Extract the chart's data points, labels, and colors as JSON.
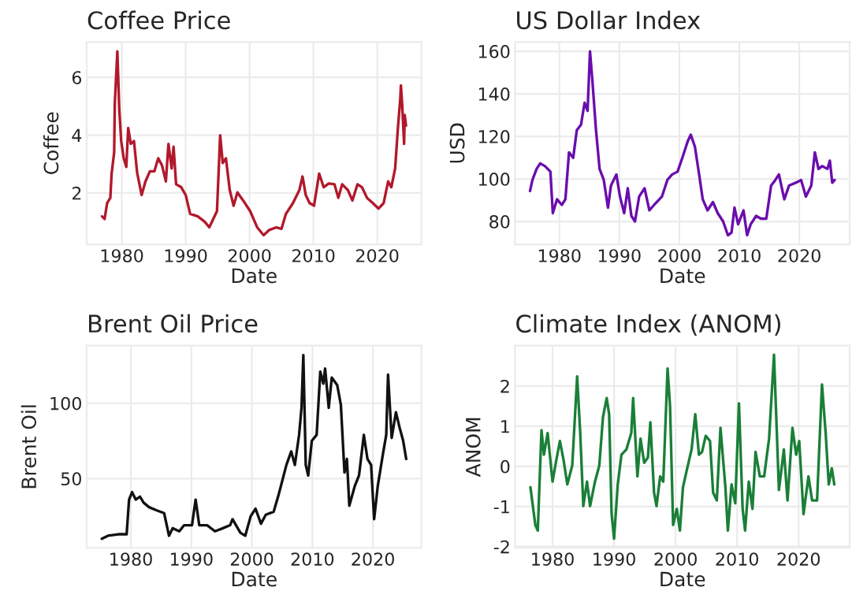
{
  "chart_data": [
    {
      "type": "line",
      "title": "Coffee Price",
      "xlabel": "Date",
      "ylabel": "Coffee",
      "xlim": [
        1974.5,
        2026.9
      ],
      "xticks": [
        1980,
        1990,
        2000,
        2010,
        2020
      ],
      "ylim": [
        0.22,
        7.22
      ],
      "yticks": [
        2,
        4,
        6
      ],
      "grid": true,
      "series": [
        {
          "color": "#b2182b",
          "x": [
            1976.9,
            1977.3,
            1977.7,
            1978.2,
            1978.4,
            1978.8,
            1978.9,
            1979.3,
            1979.6,
            1979.9,
            1980.3,
            1980.7,
            1981.0,
            1981.4,
            1981.9,
            1982.4,
            1983.1,
            1983.7,
            1984.4,
            1985.1,
            1985.7,
            1986.3,
            1986.9,
            1987.3,
            1987.8,
            1988.1,
            1988.5,
            1989.3,
            1990.0,
            1990.7,
            1991.9,
            1993.0,
            1993.7,
            1994.9,
            1995.4,
            1995.8,
            1996.3,
            1996.9,
            1997.5,
            1998.1,
            1999.0,
            2000.1,
            2001.2,
            2002.2,
            2003.1,
            2004.2,
            2005.0,
            2005.7,
            2006.8,
            2007.8,
            2008.3,
            2008.8,
            2009.4,
            2010.1,
            2010.9,
            2011.6,
            2012.4,
            2013.3,
            2013.9,
            2014.5,
            2015.4,
            2016.1,
            2016.9,
            2017.6,
            2018.4,
            2019.3,
            2020.2,
            2021.0,
            2021.7,
            2022.2,
            2022.8,
            2023.2,
            2023.6,
            2023.7,
            2023.9,
            2024.2,
            2024.3,
            2024.5
          ],
          "values": [
            1.19,
            1.1,
            1.65,
            1.83,
            2.67,
            3.4,
            5.1,
            6.9,
            4.9,
            3.8,
            3.2,
            2.9,
            4.25,
            3.7,
            3.8,
            2.7,
            1.93,
            2.4,
            2.75,
            2.75,
            3.2,
            2.95,
            2.4,
            3.7,
            2.85,
            3.6,
            2.3,
            2.2,
            1.93,
            1.28,
            1.19,
            1.0,
            0.81,
            1.37,
            4.0,
            3.04,
            3.2,
            2.1,
            1.56,
            2.02,
            1.74,
            1.37,
            0.81,
            0.54,
            0.72,
            0.81,
            0.76,
            1.28,
            1.65,
            2.1,
            2.57,
            1.93,
            1.65,
            1.56,
            2.67,
            2.2,
            2.33,
            2.3,
            1.83,
            2.3,
            2.1,
            1.74,
            2.3,
            2.2,
            1.83,
            1.65,
            1.46,
            1.65,
            2.4,
            2.2,
            2.85,
            4.15,
            5.26,
            5.72,
            5.07,
            3.7,
            4.7,
            4.33
          ]
        }
      ]
    },
    {
      "type": "line",
      "title": "US Dollar Index",
      "xlabel": "Date",
      "ylabel": "USD",
      "xlim": [
        1972.6,
        2028.4
      ],
      "xticks": [
        1980,
        1990,
        2000,
        2010,
        2020
      ],
      "ylim": [
        69.2,
        164.3
      ],
      "yticks": [
        80,
        100,
        120,
        140,
        160
      ],
      "grid": true,
      "series": [
        {
          "color": "#6a0dad",
          "x": [
            1975.1,
            1975.5,
            1976.2,
            1976.8,
            1977.6,
            1978.5,
            1978.9,
            1979.6,
            1980.4,
            1981.0,
            1981.6,
            1982.3,
            1982.9,
            1983.6,
            1984.2,
            1984.7,
            1985.1,
            1985.5,
            1986.1,
            1986.7,
            1987.4,
            1988.1,
            1988.6,
            1989.5,
            1990.1,
            1990.8,
            1991.4,
            1992.0,
            1992.6,
            1993.3,
            1994.2,
            1995.0,
            1995.8,
            1997.1,
            1998.0,
            1998.8,
            1999.7,
            2000.5,
            2001.4,
            2001.9,
            2002.6,
            2003.3,
            2003.9,
            2004.7,
            2005.6,
            2006.4,
            2007.3,
            2008.1,
            2008.7,
            2009.2,
            2009.8,
            2010.7,
            2011.3,
            2011.9,
            2012.8,
            2013.6,
            2014.5,
            2015.3,
            2016.0,
            2016.6,
            2017.5,
            2018.3,
            2019.4,
            2020.3,
            2021.1,
            2022.0,
            2022.6,
            2023.2,
            2023.8,
            2024.7,
            2025.1,
            2025.5,
            2025.9
          ],
          "values": [
            94.3,
            99.5,
            104.7,
            107.3,
            106,
            103.4,
            83.9,
            90.4,
            87.8,
            90.4,
            112.5,
            109.9,
            122.9,
            125.5,
            135.8,
            132,
            160,
            146.2,
            122.9,
            104.7,
            99.5,
            86.5,
            96.9,
            102.1,
            91.7,
            83.9,
            95.6,
            82.6,
            80,
            91.7,
            95.6,
            85.2,
            87.8,
            91.7,
            99.5,
            102.1,
            103.4,
            109.9,
            117.7,
            120.8,
            115.1,
            102.1,
            90.4,
            85.2,
            89.1,
            83.9,
            80,
            73.5,
            74.8,
            86.5,
            78.7,
            85.2,
            73.5,
            78.7,
            82.6,
            81.3,
            81.3,
            96.9,
            99.5,
            102.1,
            90.4,
            96.9,
            98.2,
            99.5,
            91.7,
            96.9,
            112.5,
            104.7,
            106,
            104.7,
            108.6,
            98.2,
            99.5
          ]
        }
      ]
    },
    {
      "type": "line",
      "title": "Brent Oil Price",
      "xlabel": "Date",
      "ylabel": "Brent Oil",
      "xlim": [
        1972.7,
        2028.0
      ],
      "xticks": [
        1980,
        1990,
        2000,
        2010,
        2020
      ],
      "ylim": [
        4,
        138.3
      ],
      "yticks": [
        50,
        100
      ],
      "grid": true,
      "series": [
        {
          "color": "#111111",
          "x": [
            1975.2,
            1976.2,
            1977.9,
            1979.3,
            1979.7,
            1980.2,
            1980.8,
            1981.5,
            1982.1,
            1983.0,
            1984.2,
            1985.5,
            1986.3,
            1986.9,
            1988.0,
            1988.8,
            1990.1,
            1990.7,
            1991.3,
            1992.6,
            1993.9,
            1995.2,
            1996.4,
            1996.8,
            1998.1,
            1998.9,
            1999.8,
            2000.6,
            2001.5,
            2002.3,
            2003.6,
            2004.4,
            2005.7,
            2006.5,
            2007.1,
            2007.8,
            2008.2,
            2008.5,
            2008.9,
            2009.3,
            2009.9,
            2010.7,
            2011.3,
            2011.8,
            2012.1,
            2012.7,
            2013.2,
            2014.1,
            2014.7,
            2015.3,
            2015.7,
            2016.1,
            2017.0,
            2017.7,
            2018.5,
            2019.1,
            2019.7,
            2020.2,
            2020.8,
            2021.6,
            2022.2,
            2022.5,
            2023.1,
            2023.8,
            2024.4,
            2025.0,
            2025.5
          ],
          "values": [
            10,
            12,
            13,
            13,
            36,
            41,
            36,
            38,
            34,
            31,
            29,
            27,
            12,
            17,
            15,
            19,
            19,
            36,
            19,
            19,
            15,
            17,
            19,
            23,
            14,
            12,
            25,
            30,
            20,
            26,
            28,
            39,
            59,
            68,
            59,
            79,
            97,
            132,
            59,
            52,
            75,
            79,
            121,
            113,
            123,
            97,
            117,
            112,
            99,
            54,
            63,
            32,
            45,
            52,
            79,
            63,
            59,
            23,
            45,
            65,
            79,
            119,
            77,
            94,
            84,
            75,
            63
          ]
        }
      ]
    },
    {
      "type": "line",
      "title": "Climate Index (ANOM)",
      "xlabel": "Date",
      "ylabel": "ANOM",
      "xlim": [
        1973.9,
        2028.3
      ],
      "xticks": [
        1980,
        1990,
        2000,
        2010,
        2020
      ],
      "ylim": [
        -2.03,
        3.01
      ],
      "yticks": [
        {
          "value": -2,
          "label": "-2"
        },
        {
          "value": -1,
          "label": "-1"
        },
        0,
        1,
        2
      ],
      "grid": true,
      "series": [
        {
          "color": "#1a7f37",
          "x": [
            1976.4,
            1977.2,
            1977.6,
            1978.2,
            1978.6,
            1979.2,
            1980.0,
            1980.6,
            1981.2,
            1981.8,
            1982.4,
            1983.2,
            1984.0,
            1984.5,
            1985.0,
            1985.6,
            1986.1,
            1986.9,
            1987.6,
            1988.2,
            1988.8,
            1989.2,
            1989.6,
            1990.0,
            1990.6,
            1991.2,
            1992.0,
            1992.8,
            1993.1,
            1993.8,
            1994.3,
            1994.9,
            1995.5,
            1995.9,
            1996.5,
            1996.9,
            1997.5,
            1998.0,
            1998.7,
            1999.1,
            1999.6,
            2000.2,
            2000.7,
            2001.2,
            2001.8,
            2002.6,
            2003.2,
            2003.8,
            2004.3,
            2004.9,
            2005.6,
            2006.1,
            2006.7,
            2007.3,
            2008.1,
            2008.5,
            2009.1,
            2009.7,
            2010.3,
            2010.9,
            2011.3,
            2011.9,
            2012.5,
            2013.0,
            2013.7,
            2014.4,
            2015.2,
            2016.0,
            2016.8,
            2017.6,
            2018.2,
            2019.0,
            2019.6,
            2020.1,
            2020.8,
            2021.6,
            2022.2,
            2023.0,
            2023.8,
            2024.4,
            2024.9,
            2025.4,
            2025.8
          ],
          "values": [
            -0.52,
            -1.46,
            -1.6,
            0.9,
            0.29,
            0.83,
            -0.38,
            0.15,
            0.63,
            0.15,
            -0.45,
            0.02,
            2.24,
            0.83,
            -0.99,
            -0.38,
            -0.99,
            -0.38,
            0.02,
            1.23,
            1.7,
            1.3,
            -1.19,
            -1.8,
            -0.45,
            0.29,
            0.42,
            0.83,
            1.7,
            -0.25,
            0.69,
            0.09,
            0.22,
            1.1,
            -0.65,
            -0.99,
            -0.25,
            -0.38,
            2.44,
            1.5,
            -1.46,
            -1.06,
            -1.6,
            -0.52,
            -0.11,
            0.42,
            1.3,
            0.29,
            0.36,
            0.76,
            0.63,
            -0.65,
            -0.85,
            0.96,
            -0.52,
            -1.6,
            -0.45,
            -0.92,
            1.57,
            -1.06,
            -1.6,
            -0.38,
            -1.06,
            0.36,
            -0.25,
            -0.25,
            0.69,
            2.78,
            -0.59,
            0.42,
            -0.85,
            0.96,
            0.29,
            0.63,
            -1.19,
            -0.25,
            -0.85,
            -0.85,
            2.04,
            0.83,
            -0.45,
            -0.05,
            -0.45
          ]
        }
      ]
    }
  ]
}
